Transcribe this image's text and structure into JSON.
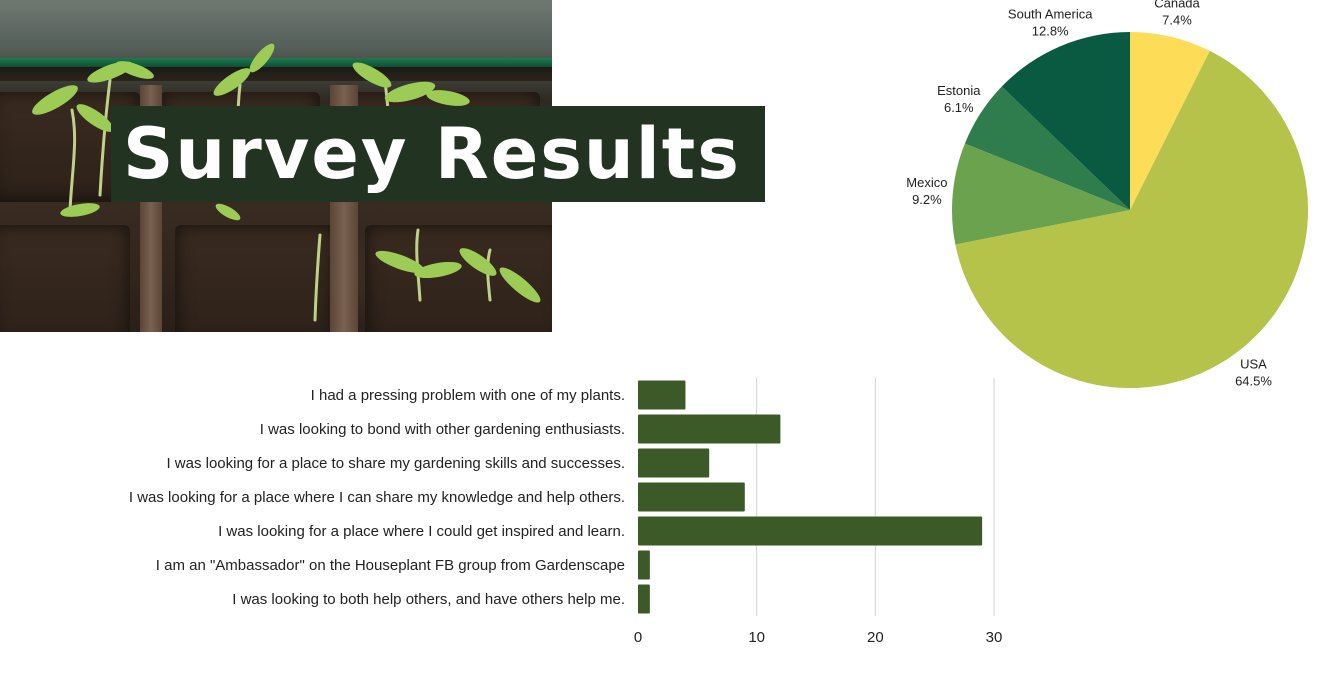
{
  "header": {
    "title": "Survey Results"
  },
  "chart_data": [
    {
      "type": "pie",
      "categories": [
        "Canada",
        "USA",
        "Mexico",
        "Estonia",
        "South America"
      ],
      "labels": [
        "7.4%",
        "64.5%",
        "9.2%",
        "6.1%",
        "12.8%"
      ],
      "values": [
        7.4,
        64.5,
        9.2,
        6.1,
        12.8
      ],
      "colors": [
        "#fddd57",
        "#b5c34b",
        "#6aa24d",
        "#2f7d4c",
        "#0a5a42"
      ]
    },
    {
      "type": "bar",
      "orientation": "horizontal",
      "categories": [
        "I had a pressing problem with one of my plants.",
        "I was looking to bond with other gardening enthusiasts.",
        "I was looking for a place to share my gardening skills and successes.",
        "I was looking for a place where I can share my knowledge and help others.",
        "I was looking for a place where I could get inspired and learn.",
        "I am an \"Ambassador\" on the Houseplant FB group from Gardenscape",
        "I was looking to both help others, and have others help me."
      ],
      "values": [
        4,
        12,
        6,
        9,
        29,
        1,
        1
      ],
      "xlim": [
        0,
        30
      ],
      "xticks": [
        0,
        10,
        20,
        30
      ],
      "xtick_labels": [
        "0",
        "10",
        "20",
        "30"
      ],
      "color": "#3b5a27",
      "grid": true
    }
  ]
}
